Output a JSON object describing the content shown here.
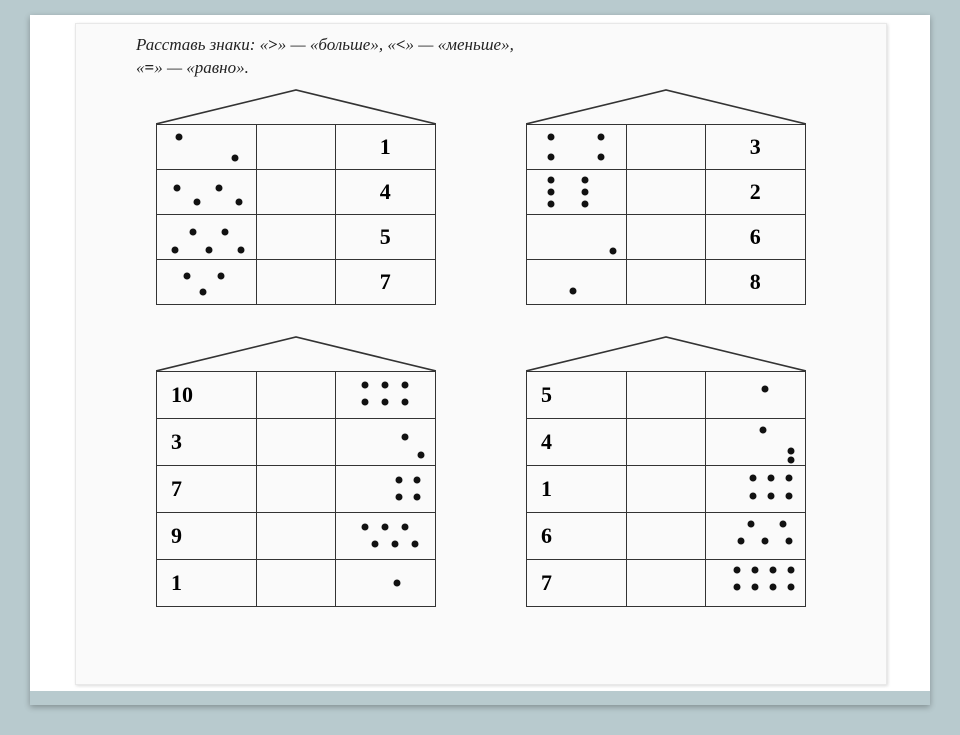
{
  "instruction_prefix": "Расставь знаки: «",
  "sym_gt": ">",
  "instruction_mid1": "» — «больше», «",
  "sym_lt": "<",
  "instruction_mid2": "» — «меньше»,",
  "instruction_line2a": "«",
  "sym_eq": "=",
  "instruction_line2b": "» — «равно».",
  "colors": {
    "page_bg": "#fafafa",
    "slide_bg": "#ffffff",
    "outer_bg": "#b8cace",
    "line": "#333333",
    "dot": "#111111"
  },
  "houses": [
    {
      "id": "h1",
      "rows": [
        {
          "left_dots": [
            [
              22,
              28
            ],
            [
              78,
              76
            ]
          ],
          "right_num": "1"
        },
        {
          "left_dots": [
            [
              20,
              42
            ],
            [
              40,
              72
            ],
            [
              62,
              42
            ],
            [
              82,
              72
            ]
          ],
          "right_num": "4"
        },
        {
          "left_dots": [
            [
              18,
              80
            ],
            [
              36,
              40
            ],
            [
              52,
              80
            ],
            [
              68,
              40
            ],
            [
              84,
              80
            ]
          ],
          "right_num": "5"
        },
        {
          "left_dots": [
            [
              30,
              36
            ],
            [
              46,
              72
            ],
            [
              64,
              36
            ]
          ],
          "right_num": "7"
        }
      ]
    },
    {
      "id": "h2",
      "rows": [
        {
          "left_dots": [
            [
              24,
              28
            ],
            [
              24,
              72
            ],
            [
              74,
              28
            ],
            [
              74,
              72
            ]
          ],
          "right_num": "3"
        },
        {
          "left_dots": [
            [
              24,
              22
            ],
            [
              24,
              50
            ],
            [
              24,
              78
            ],
            [
              58,
              22
            ],
            [
              58,
              50
            ],
            [
              58,
              78
            ]
          ],
          "right_num": "2"
        },
        {
          "left_dots": [
            [
              86,
              82
            ]
          ],
          "right_num": "6"
        },
        {
          "left_dots": [
            [
              46,
              70
            ]
          ],
          "right_num": "8"
        }
      ]
    },
    {
      "id": "h3",
      "rows": [
        {
          "left_num": "10",
          "right_dots": [
            [
              30,
              28
            ],
            [
              50,
              28
            ],
            [
              70,
              28
            ],
            [
              30,
              66
            ],
            [
              50,
              66
            ],
            [
              70,
              66
            ]
          ]
        },
        {
          "left_num": "3",
          "right_dots": [
            [
              70,
              40
            ],
            [
              86,
              78
            ]
          ]
        },
        {
          "left_num": "7",
          "right_dots": [
            [
              64,
              30
            ],
            [
              82,
              30
            ],
            [
              64,
              68
            ],
            [
              82,
              68
            ]
          ]
        },
        {
          "left_num": "9",
          "right_dots": [
            [
              30,
              30
            ],
            [
              50,
              30
            ],
            [
              70,
              30
            ],
            [
              40,
              68
            ],
            [
              60,
              68
            ],
            [
              80,
              68
            ]
          ]
        },
        {
          "left_num": "1",
          "right_dots": [
            [
              62,
              50
            ]
          ]
        }
      ]
    },
    {
      "id": "h4",
      "rows": [
        {
          "left_num": "5",
          "right_dots": [
            [
              60,
              38
            ]
          ]
        },
        {
          "left_num": "4",
          "right_dots": [
            [
              58,
              24
            ],
            [
              86,
              70
            ],
            [
              86,
              90
            ]
          ]
        },
        {
          "left_num": "1",
          "right_dots": [
            [
              48,
              26
            ],
            [
              66,
              26
            ],
            [
              84,
              26
            ],
            [
              48,
              66
            ],
            [
              66,
              66
            ],
            [
              84,
              66
            ]
          ]
        },
        {
          "left_num": "6",
          "right_dots": [
            [
              46,
              24
            ],
            [
              78,
              24
            ],
            [
              36,
              62
            ],
            [
              60,
              62
            ],
            [
              84,
              62
            ]
          ]
        },
        {
          "left_num": "7",
          "right_dots": [
            [
              32,
              22
            ],
            [
              50,
              22
            ],
            [
              68,
              22
            ],
            [
              86,
              22
            ],
            [
              32,
              60
            ],
            [
              50,
              60
            ],
            [
              68,
              60
            ],
            [
              86,
              60
            ]
          ]
        }
      ]
    }
  ]
}
